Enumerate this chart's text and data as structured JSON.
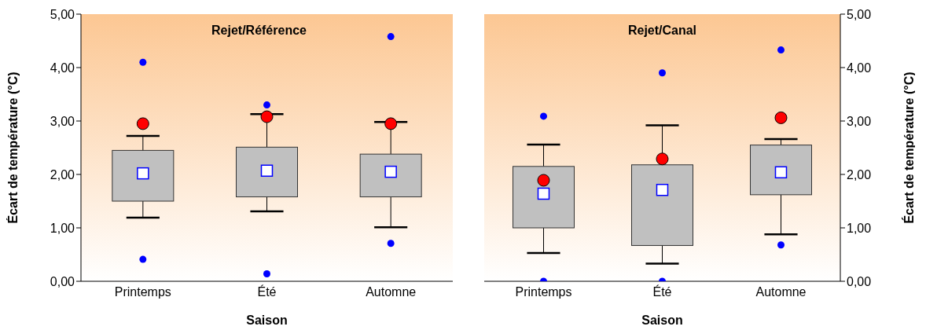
{
  "chart_data": [
    {
      "type": "box",
      "title": "Rejet/Référence",
      "xlabel": "Saison",
      "ylabel": "Écart de température (°C)",
      "categories": [
        "Printemps",
        "Été",
        "Automne"
      ],
      "ylim": [
        0,
        5
      ],
      "yticks": [
        {
          "value": 0,
          "label": "0,00"
        },
        {
          "value": 1,
          "label": "1,00"
        },
        {
          "value": 2,
          "label": "2,00"
        },
        {
          "value": 3,
          "label": "3,00"
        },
        {
          "value": 4,
          "label": "4,00"
        },
        {
          "value": 5,
          "label": "5,00"
        }
      ],
      "series": [
        {
          "type": "box",
          "color": "#c0c0c0",
          "boxes": [
            {
              "low": 1.19,
              "q1": 1.5,
              "median": null,
              "q3": 2.45,
              "high": 2.72,
              "mean": 2.02,
              "outliers": [
                4.1,
                0.41
              ]
            },
            {
              "low": 1.31,
              "q1": 1.58,
              "median": null,
              "q3": 2.51,
              "high": 3.13,
              "mean": 2.07,
              "outliers": [
                3.3,
                0.14
              ]
            },
            {
              "low": 1.01,
              "q1": 1.58,
              "median": null,
              "q3": 2.38,
              "high": 2.98,
              "mean": 2.05,
              "outliers": [
                4.58,
                0.71
              ]
            }
          ]
        },
        {
          "type": "scatter",
          "color": "#ff0000",
          "x": [
            "Printemps",
            "Été",
            "Automne"
          ],
          "values": [
            2.95,
            3.08,
            2.95
          ]
        }
      ]
    },
    {
      "type": "box",
      "title": "Rejet/Canal",
      "xlabel": "Saison",
      "y2label": "Écart de température (°C)",
      "categories": [
        "Printemps",
        "Été",
        "Automne"
      ],
      "y2lim": [
        0,
        5
      ],
      "y2ticks": [
        {
          "value": 0,
          "label": "0,00"
        },
        {
          "value": 1,
          "label": "1,00"
        },
        {
          "value": 2,
          "label": "2,00"
        },
        {
          "value": 3,
          "label": "3,00"
        },
        {
          "value": 4,
          "label": "4,00"
        },
        {
          "value": 5,
          "label": "5,00"
        }
      ],
      "series": [
        {
          "type": "box",
          "axis": "y2",
          "color": "#c0c0c0",
          "boxes": [
            {
              "low": 0.53,
              "q1": 1.0,
              "median": null,
              "q3": 2.15,
              "high": 2.56,
              "mean": 1.64,
              "outliers": [
                3.09,
                0
              ]
            },
            {
              "low": 0.33,
              "q1": 0.67,
              "median": null,
              "q3": 2.18,
              "high": 2.92,
              "mean": 1.71,
              "outliers": [
                3.9,
                0
              ]
            },
            {
              "low": 0.88,
              "q1": 1.62,
              "median": null,
              "q3": 2.55,
              "high": 2.66,
              "mean": 2.04,
              "outliers": [
                4.33,
                0.68
              ]
            }
          ]
        },
        {
          "type": "scatter",
          "axis": "y2",
          "color": "#ff0000",
          "x": [
            "Printemps",
            "Été",
            "Automne"
          ],
          "values": [
            1.89,
            2.29,
            3.06
          ]
        }
      ]
    }
  ]
}
